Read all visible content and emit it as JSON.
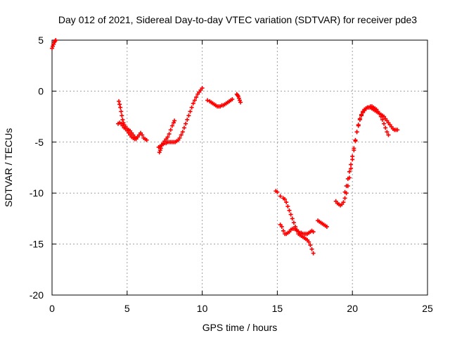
{
  "chart_data": {
    "type": "scatter",
    "title": "Day 012 of 2021, Sidereal Day-to-day VTEC variation (SDTVAR) for receiver pde3",
    "xlabel": "GPS time / hours",
    "ylabel": "SDTVAR / TECUs",
    "xlim": [
      0,
      25
    ],
    "ylim": [
      -20,
      5
    ],
    "xticks": [
      0,
      5,
      10,
      15,
      20,
      25
    ],
    "yticks": [
      -20,
      -15,
      -10,
      -5,
      0,
      5
    ],
    "grid": true,
    "legend": "none",
    "marker": "+",
    "color": "#ff0000",
    "series": [
      {
        "points": [
          [
            0.0,
            4.2
          ],
          [
            0.05,
            4.4
          ],
          [
            0.1,
            4.6
          ],
          [
            0.15,
            4.8
          ],
          [
            0.2,
            4.9
          ],
          [
            0.25,
            5.0
          ]
        ]
      },
      {
        "points": [
          [
            4.45,
            -1.0
          ],
          [
            4.5,
            -1.3
          ],
          [
            4.55,
            -1.6
          ],
          [
            4.6,
            -2.0
          ],
          [
            4.65,
            -2.4
          ],
          [
            4.7,
            -2.8
          ],
          [
            4.75,
            -3.1
          ],
          [
            4.8,
            -3.3
          ],
          [
            4.9,
            -3.5
          ],
          [
            5.0,
            -3.7
          ],
          [
            5.1,
            -3.8
          ],
          [
            5.2,
            -3.9
          ],
          [
            5.3,
            -4.1
          ],
          [
            5.4,
            -4.3
          ],
          [
            5.5,
            -4.5
          ],
          [
            5.6,
            -4.6
          ],
          [
            5.7,
            -4.5
          ],
          [
            5.8,
            -4.3
          ],
          [
            5.9,
            -4.1
          ],
          [
            6.0,
            -4.3
          ],
          [
            6.1,
            -4.6
          ],
          [
            6.2,
            -4.7
          ],
          [
            6.3,
            -4.8
          ]
        ]
      },
      {
        "points": [
          [
            4.4,
            -3.2
          ],
          [
            4.5,
            -3.1
          ],
          [
            4.6,
            -3.2
          ],
          [
            4.7,
            -3.4
          ],
          [
            4.8,
            -3.6
          ],
          [
            4.9,
            -3.7
          ],
          [
            5.0,
            -3.9
          ],
          [
            5.1,
            -4.1
          ],
          [
            5.2,
            -4.3
          ],
          [
            5.3,
            -4.5
          ],
          [
            5.4,
            -4.6
          ],
          [
            5.5,
            -4.7
          ],
          [
            5.6,
            -4.7
          ]
        ]
      },
      {
        "points": [
          [
            7.15,
            -6.0
          ],
          [
            7.2,
            -5.8
          ],
          [
            7.25,
            -5.6
          ],
          [
            7.3,
            -5.3
          ],
          [
            7.4,
            -5.1
          ],
          [
            7.5,
            -4.9
          ],
          [
            7.6,
            -4.7
          ],
          [
            7.7,
            -4.5
          ],
          [
            7.8,
            -4.2
          ],
          [
            7.9,
            -3.8
          ],
          [
            8.0,
            -3.4
          ],
          [
            8.1,
            -3.1
          ],
          [
            8.15,
            -2.9
          ]
        ]
      },
      {
        "points": [
          [
            7.1,
            -5.5
          ],
          [
            7.2,
            -5.4
          ],
          [
            7.3,
            -5.3
          ],
          [
            7.4,
            -5.2
          ],
          [
            7.5,
            -5.1
          ],
          [
            7.6,
            -5.1
          ],
          [
            7.7,
            -5.0
          ],
          [
            7.8,
            -5.0
          ],
          [
            7.9,
            -5.0
          ],
          [
            8.0,
            -5.0
          ],
          [
            8.1,
            -5.0
          ],
          [
            8.2,
            -5.0
          ],
          [
            8.3,
            -4.9
          ],
          [
            8.4,
            -4.8
          ],
          [
            8.5,
            -4.6
          ],
          [
            8.6,
            -4.3
          ],
          [
            8.7,
            -4.0
          ],
          [
            8.8,
            -3.6
          ],
          [
            8.9,
            -3.2
          ],
          [
            9.0,
            -2.8
          ],
          [
            9.1,
            -2.4
          ],
          [
            9.2,
            -2.0
          ],
          [
            9.3,
            -1.6
          ],
          [
            9.4,
            -1.2
          ],
          [
            9.5,
            -0.9
          ],
          [
            9.6,
            -0.6
          ],
          [
            9.7,
            -0.3
          ],
          [
            9.8,
            -0.1
          ],
          [
            9.9,
            0.1
          ],
          [
            10.0,
            0.3
          ]
        ]
      },
      {
        "points": [
          [
            10.35,
            -0.9
          ],
          [
            10.5,
            -1.0
          ],
          [
            10.6,
            -1.1
          ],
          [
            10.7,
            -1.2
          ],
          [
            10.8,
            -1.3
          ],
          [
            10.9,
            -1.4
          ],
          [
            11.0,
            -1.5
          ],
          [
            11.1,
            -1.5
          ],
          [
            11.2,
            -1.5
          ],
          [
            11.3,
            -1.4
          ],
          [
            11.4,
            -1.4
          ],
          [
            11.5,
            -1.3
          ],
          [
            11.6,
            -1.2
          ],
          [
            11.7,
            -1.1
          ],
          [
            11.8,
            -1.0
          ],
          [
            11.9,
            -0.9
          ],
          [
            12.0,
            -0.8
          ]
        ]
      },
      {
        "points": [
          [
            12.3,
            -0.3
          ],
          [
            12.35,
            -0.4
          ],
          [
            12.4,
            -0.5
          ],
          [
            12.45,
            -0.7
          ],
          [
            12.5,
            -0.9
          ],
          [
            12.55,
            -1.1
          ]
        ]
      },
      {
        "points": [
          [
            14.9,
            -9.8
          ],
          [
            15.0,
            -9.9
          ],
          [
            15.2,
            -10.3
          ],
          [
            15.4,
            -10.5
          ],
          [
            15.5,
            -10.6
          ],
          [
            15.6,
            -10.9
          ],
          [
            15.7,
            -11.3
          ],
          [
            15.8,
            -11.7
          ],
          [
            15.9,
            -12.1
          ],
          [
            16.0,
            -12.5
          ],
          [
            16.1,
            -12.9
          ],
          [
            16.2,
            -13.3
          ],
          [
            16.3,
            -13.7
          ],
          [
            16.4,
            -14.0
          ],
          [
            16.5,
            -14.1
          ],
          [
            16.6,
            -14.2
          ],
          [
            16.7,
            -14.3
          ],
          [
            16.8,
            -14.4
          ],
          [
            16.9,
            -14.5
          ],
          [
            17.0,
            -14.6
          ],
          [
            17.1,
            -14.8
          ],
          [
            17.2,
            -15.1
          ],
          [
            17.3,
            -15.5
          ],
          [
            17.4,
            -15.9
          ]
        ]
      },
      {
        "points": [
          [
            15.2,
            -13.1
          ],
          [
            15.3,
            -13.3
          ],
          [
            15.4,
            -13.7
          ],
          [
            15.5,
            -14.0
          ],
          [
            15.6,
            -14.0
          ],
          [
            15.7,
            -13.9
          ],
          [
            15.8,
            -13.8
          ],
          [
            15.9,
            -13.6
          ],
          [
            16.0,
            -13.5
          ],
          [
            16.1,
            -13.5
          ],
          [
            16.2,
            -13.5
          ],
          [
            16.3,
            -13.6
          ],
          [
            16.4,
            -13.8
          ],
          [
            16.5,
            -13.9
          ],
          [
            16.6,
            -13.9
          ],
          [
            16.7,
            -14.0
          ],
          [
            16.8,
            -14.0
          ],
          [
            16.9,
            -14.0
          ],
          [
            17.0,
            -14.0
          ],
          [
            17.1,
            -13.9
          ],
          [
            17.2,
            -13.8
          ],
          [
            17.3,
            -13.7
          ],
          [
            17.4,
            -13.8
          ]
        ]
      },
      {
        "points": [
          [
            17.7,
            -12.7
          ],
          [
            17.8,
            -12.8
          ],
          [
            17.9,
            -12.9
          ],
          [
            18.0,
            -13.0
          ],
          [
            18.1,
            -13.1
          ],
          [
            18.2,
            -13.2
          ],
          [
            18.3,
            -13.3
          ]
        ]
      },
      {
        "points": [
          [
            18.9,
            -10.8
          ],
          [
            19.0,
            -11.0
          ],
          [
            19.1,
            -11.1
          ],
          [
            19.2,
            -11.2
          ],
          [
            19.3,
            -11.1
          ],
          [
            19.4,
            -10.9
          ],
          [
            19.5,
            -10.5
          ],
          [
            19.6,
            -10.0
          ],
          [
            19.7,
            -9.3
          ],
          [
            19.8,
            -8.5
          ],
          [
            19.9,
            -7.6
          ],
          [
            20.0,
            -6.7
          ],
          [
            20.1,
            -5.8
          ],
          [
            20.2,
            -4.9
          ],
          [
            20.3,
            -4.0
          ],
          [
            20.4,
            -3.3
          ],
          [
            20.5,
            -2.7
          ],
          [
            20.6,
            -2.3
          ],
          [
            20.7,
            -2.0
          ],
          [
            20.8,
            -1.8
          ],
          [
            20.9,
            -1.7
          ],
          [
            21.0,
            -1.6
          ],
          [
            21.1,
            -1.6
          ],
          [
            21.2,
            -1.5
          ],
          [
            21.3,
            -1.5
          ],
          [
            21.4,
            -1.6
          ],
          [
            21.5,
            -1.7
          ],
          [
            21.6,
            -1.8
          ],
          [
            21.7,
            -2.0
          ],
          [
            21.8,
            -2.2
          ],
          [
            21.9,
            -2.5
          ],
          [
            22.0,
            -2.8
          ],
          [
            22.1,
            -3.2
          ],
          [
            22.2,
            -3.6
          ],
          [
            22.3,
            -4.0
          ],
          [
            22.4,
            -4.3
          ]
        ]
      },
      {
        "points": [
          [
            19.5,
            -9.9
          ],
          [
            19.6,
            -9.3
          ],
          [
            19.7,
            -8.6
          ],
          [
            19.8,
            -7.9
          ],
          [
            19.9,
            -7.2
          ],
          [
            20.0,
            -6.4
          ],
          [
            20.1,
            -5.6
          ],
          [
            20.2,
            -4.8
          ],
          [
            20.3,
            -4.0
          ],
          [
            20.4,
            -3.4
          ],
          [
            20.5,
            -2.8
          ],
          [
            20.6,
            -2.4
          ],
          [
            20.7,
            -2.1
          ],
          [
            20.8,
            -1.9
          ],
          [
            20.9,
            -1.7
          ],
          [
            21.0,
            -1.6
          ],
          [
            21.1,
            -1.6
          ],
          [
            21.2,
            -1.6
          ],
          [
            21.3,
            -1.7
          ],
          [
            21.4,
            -1.8
          ],
          [
            21.5,
            -1.9
          ],
          [
            21.6,
            -2.0
          ],
          [
            21.7,
            -2.1
          ],
          [
            21.8,
            -2.2
          ],
          [
            21.9,
            -2.3
          ],
          [
            22.0,
            -2.4
          ],
          [
            22.1,
            -2.5
          ],
          [
            22.2,
            -2.7
          ],
          [
            22.3,
            -2.9
          ],
          [
            22.4,
            -3.1
          ],
          [
            22.5,
            -3.3
          ],
          [
            22.6,
            -3.5
          ],
          [
            22.7,
            -3.7
          ],
          [
            22.8,
            -3.8
          ],
          [
            22.9,
            -3.8
          ],
          [
            23.0,
            -3.8
          ]
        ]
      }
    ]
  }
}
